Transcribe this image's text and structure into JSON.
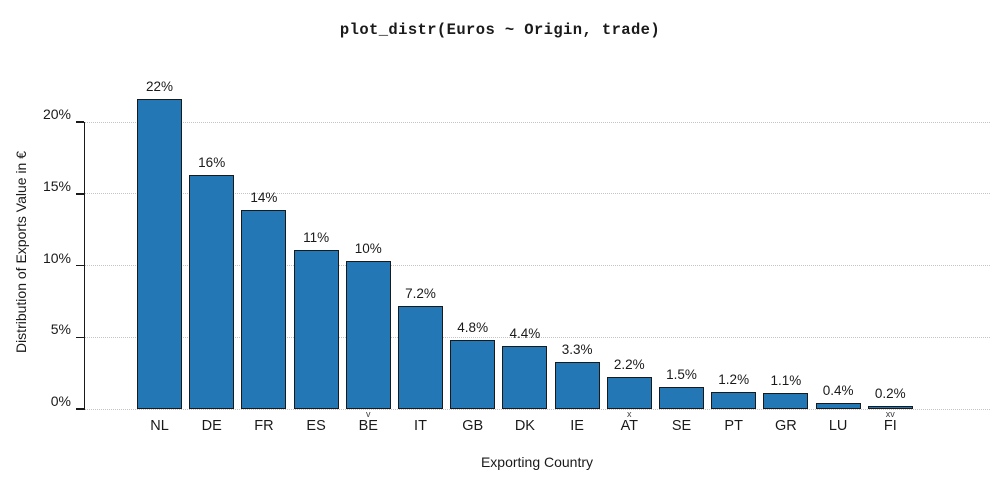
{
  "chart_data": {
    "type": "bar",
    "title": "plot_distr(Euros ~ Origin, trade)",
    "xlabel": "Exporting Country",
    "ylabel": "Distribution of Exports Value in €",
    "categories": [
      "NL",
      "DE",
      "FR",
      "ES",
      "BE",
      "IT",
      "GB",
      "DK",
      "IE",
      "AT",
      "SE",
      "PT",
      "GR",
      "LU",
      "FI"
    ],
    "values": [
      21.6,
      16.3,
      13.9,
      11.1,
      10.3,
      7.2,
      4.8,
      4.4,
      3.3,
      2.2,
      1.5,
      1.2,
      1.1,
      0.4,
      0.2
    ],
    "bar_labels": [
      "22%",
      "16%",
      "14%",
      "11%",
      "10%",
      "7.2%",
      "4.8%",
      "4.4%",
      "3.3%",
      "2.2%",
      "1.5%",
      "1.2%",
      "1.1%",
      "0.4%",
      "0.2%"
    ],
    "category_marks": [
      "",
      "",
      "",
      "",
      "v",
      "",
      "",
      "",
      "",
      "x",
      "",
      "",
      "",
      "",
      "xv"
    ],
    "yticks": [
      0,
      5,
      10,
      15,
      20
    ],
    "ytick_labels": [
      "0%",
      "5%",
      "10%",
      "15%",
      "20%"
    ],
    "ylim": [
      0,
      20
    ],
    "grid": "horizontal-dotted",
    "legend": "none",
    "colors": {
      "bar_fill": "#2377b4",
      "bar_edge": "#1a1a1a",
      "grid": "#c4c4c4",
      "text": "#1a1a1a"
    }
  }
}
